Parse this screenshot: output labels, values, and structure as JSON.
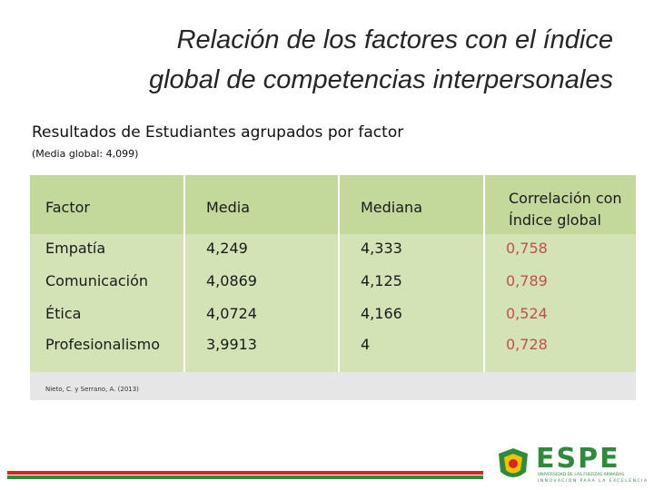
{
  "header": {
    "title_lines": [
      "Relación de los factores con el índice",
      "global de competencias interpersonales"
    ],
    "subtitle": "Resultados de Estudiantes agrupados por factor",
    "note": "(Media global: 4,099)"
  },
  "table": {
    "columns": [
      "Factor",
      "Media",
      "Mediana",
      "Correlación con Índice global"
    ],
    "rows": [
      [
        "Empatía",
        "4,249",
        "4,333",
        "0,758"
      ],
      [
        "Comunicación",
        "4,0869",
        "4,125",
        "0,789"
      ],
      [
        "Ética",
        "4,0724",
        "4,166",
        "0,524"
      ],
      [
        "Profesionalismo",
        "3,9913",
        "4",
        "0,728"
      ]
    ]
  },
  "citation": "Nieto, C. y Serrano, A. (2013)",
  "logo": {
    "name": "ESPE",
    "line1": "UNIVERSIDAD DE LAS FUERZAS ARMADAS",
    "line2": "INNOVACIÓN PARA LA EXCELENCIA"
  }
}
